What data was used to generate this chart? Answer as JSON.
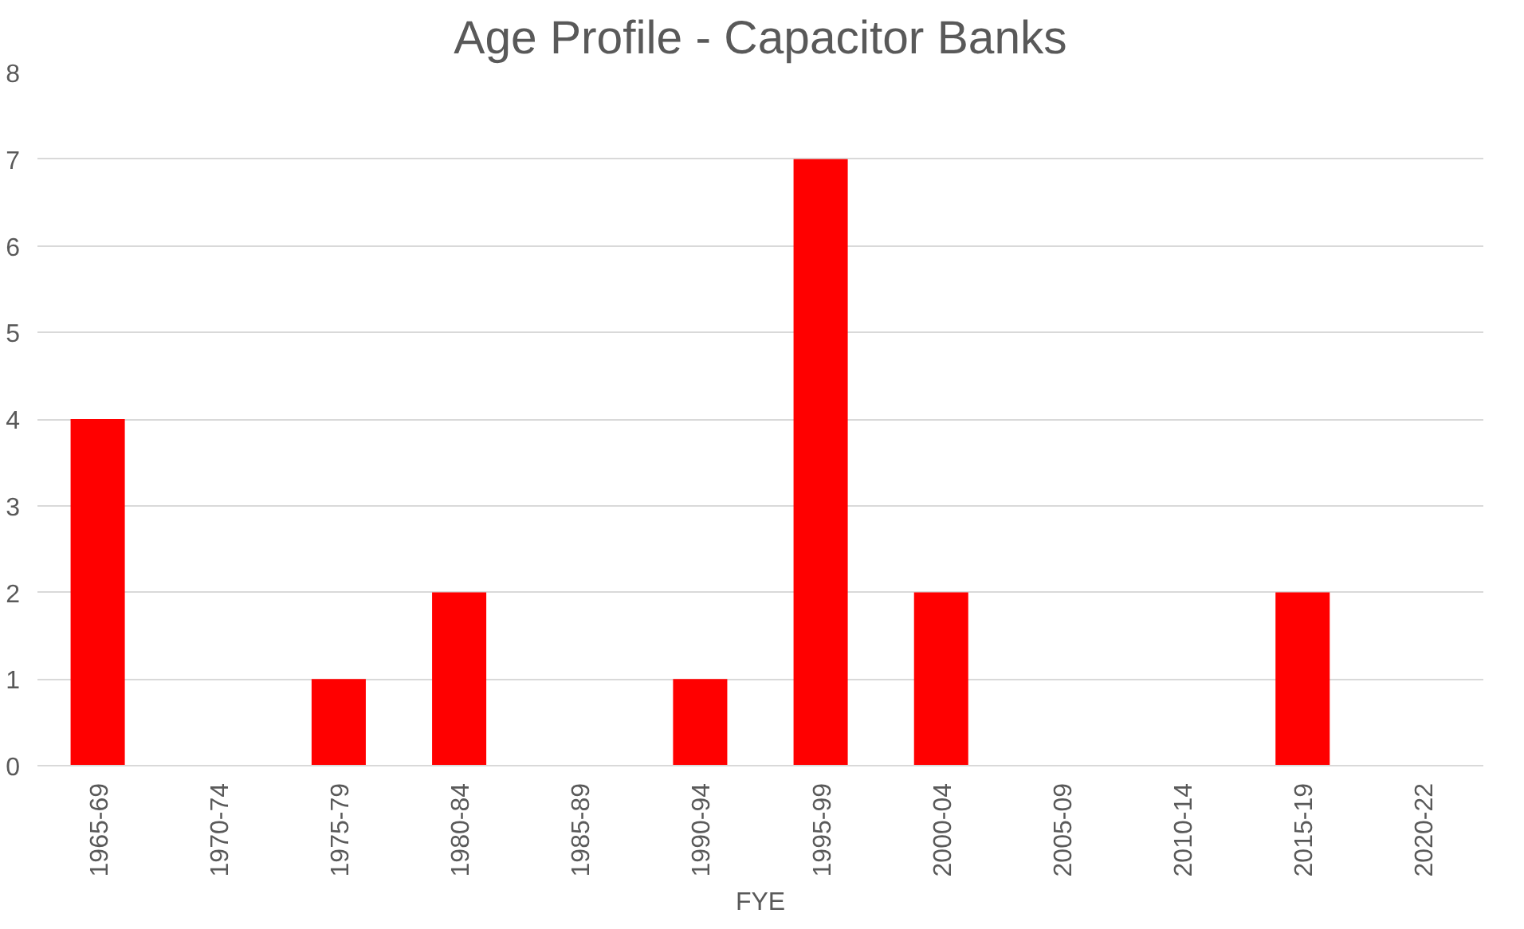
{
  "chart_data": {
    "type": "bar",
    "title": "Age Profile - Capacitor Banks",
    "xlabel": "FYE",
    "categories": [
      "1965-69",
      "1970-74",
      "1975-79",
      "1980-84",
      "1985-89",
      "1990-94",
      "1995-99",
      "2000-04",
      "2005-09",
      "2010-14",
      "2015-19",
      "2020-22"
    ],
    "values": [
      4,
      0,
      1,
      2,
      0,
      1,
      7,
      2,
      0,
      0,
      2,
      0
    ],
    "color": "#ff0000",
    "ylim": [
      0,
      8
    ],
    "yticks": [
      0,
      1,
      2,
      3,
      4,
      5,
      6,
      7,
      8
    ],
    "grid": "y"
  }
}
